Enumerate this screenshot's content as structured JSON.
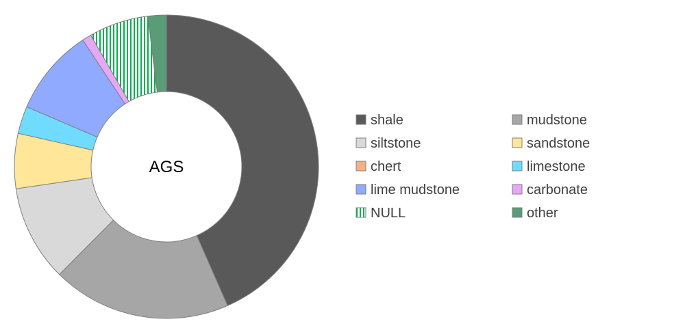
{
  "chart_data": {
    "type": "pie",
    "subtype": "donut",
    "center_label": "AGS",
    "legend_position": "right",
    "slices": [
      {
        "name": "shale",
        "value": 44.5,
        "color": "#595959"
      },
      {
        "name": "mudstone",
        "value": 19.5,
        "color": "#a6a6a6"
      },
      {
        "name": "siltstone",
        "value": 10.5,
        "color": "#d9d9d9"
      },
      {
        "name": "sandstone",
        "value": 6.0,
        "color": "#ffe699"
      },
      {
        "name": "chert",
        "value": 0.0,
        "color": "#f4b183"
      },
      {
        "name": "limestone",
        "value": 3.0,
        "color": "#6fdcff"
      },
      {
        "name": "lime mudstone",
        "value": 9.5,
        "color": "#8faaff"
      },
      {
        "name": "carbonate",
        "value": 1.0,
        "color": "#e6a8f5"
      },
      {
        "name": "NULL",
        "value": 6.5,
        "color": "#00b050",
        "pattern": "vertical-stripes"
      },
      {
        "name": "other",
        "value": 2.0,
        "color": "#5b9b78"
      }
    ]
  }
}
